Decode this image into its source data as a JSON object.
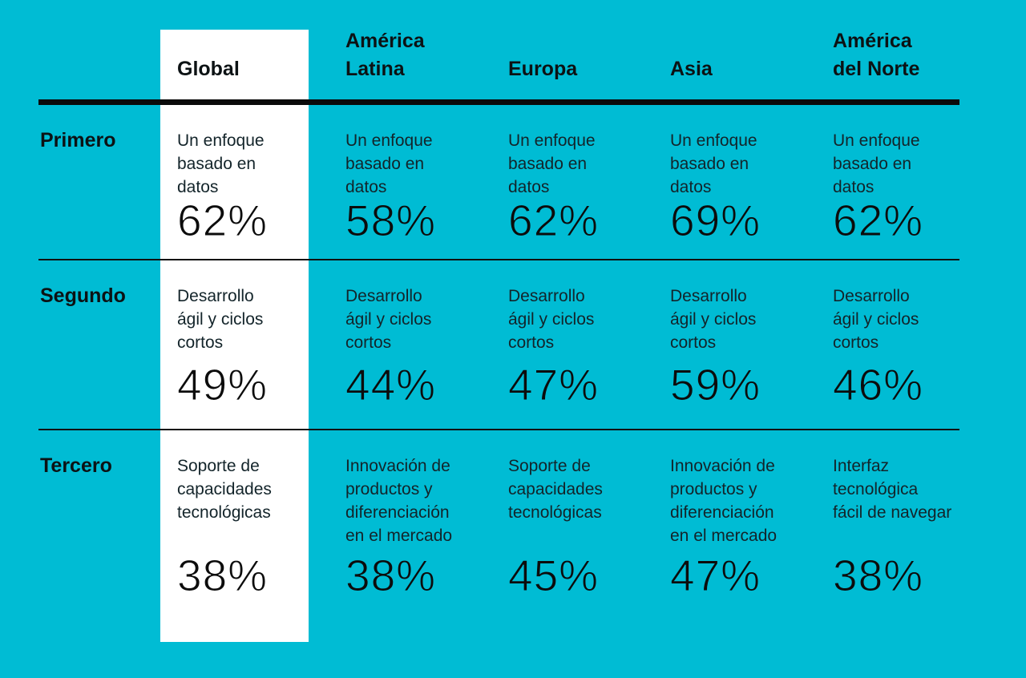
{
  "colors": {
    "background": "#00bcd4",
    "highlight_column": "#ffffff",
    "text": "#10181b",
    "rule": "#0b0b0b"
  },
  "table": {
    "columns": [
      {
        "label": "Global",
        "highlight": true
      },
      {
        "label": "América\nLatina",
        "highlight": false
      },
      {
        "label": "Europa",
        "highlight": false
      },
      {
        "label": "Asia",
        "highlight": false
      },
      {
        "label": "América\ndel Norte",
        "highlight": false
      }
    ],
    "rows": [
      {
        "label": "Primero",
        "cells": [
          {
            "desc": "Un enfoque\nbasado en\ndatos",
            "pct": "62%"
          },
          {
            "desc": "Un enfoque\nbasado en\ndatos",
            "pct": "58%"
          },
          {
            "desc": "Un enfoque\nbasado en\ndatos",
            "pct": "62%"
          },
          {
            "desc": "Un enfoque\nbasado en\ndatos",
            "pct": "69%"
          },
          {
            "desc": "Un enfoque\nbasado en\ndatos",
            "pct": "62%"
          }
        ]
      },
      {
        "label": "Segundo",
        "cells": [
          {
            "desc": "Desarrollo\nágil y ciclos\ncortos",
            "pct": "49%"
          },
          {
            "desc": "Desarrollo\nágil y ciclos\ncortos",
            "pct": "44%"
          },
          {
            "desc": "Desarrollo\nágil y ciclos\ncortos",
            "pct": "47%"
          },
          {
            "desc": "Desarrollo\nágil y ciclos\ncortos",
            "pct": "59%"
          },
          {
            "desc": "Desarrollo\nágil y ciclos\ncortos",
            "pct": "46%"
          }
        ]
      },
      {
        "label": "Tercero",
        "cells": [
          {
            "desc": "Soporte de\ncapacidades\ntecnológicas",
            "pct": "38%"
          },
          {
            "desc": "Innovación de\nproductos y\ndiferenciación\nen el mercado",
            "pct": "38%"
          },
          {
            "desc": "Soporte de\ncapacidades\ntecnológicas",
            "pct": "45%"
          },
          {
            "desc": "Innovación de\nproductos y\ndiferenciación\nen el mercado",
            "pct": "47%"
          },
          {
            "desc": "Interfaz\ntecnológica\nfácil de navegar",
            "pct": "38%"
          }
        ]
      }
    ]
  },
  "chart_data": {
    "type": "table",
    "title": "",
    "columns": [
      "Global",
      "América Latina",
      "Europa",
      "Asia",
      "América del Norte"
    ],
    "row_ranks": [
      "Primero",
      "Segundo",
      "Tercero"
    ],
    "cells": [
      [
        {
          "factor": "Un enfoque basado en datos",
          "value_pct": 62
        },
        {
          "factor": "Un enfoque basado en datos",
          "value_pct": 58
        },
        {
          "factor": "Un enfoque basado en datos",
          "value_pct": 62
        },
        {
          "factor": "Un enfoque basado en datos",
          "value_pct": 69
        },
        {
          "factor": "Un enfoque basado en datos",
          "value_pct": 62
        }
      ],
      [
        {
          "factor": "Desarrollo ágil y ciclos cortos",
          "value_pct": 49
        },
        {
          "factor": "Desarrollo ágil y ciclos cortos",
          "value_pct": 44
        },
        {
          "factor": "Desarrollo ágil y ciclos cortos",
          "value_pct": 47
        },
        {
          "factor": "Desarrollo ágil y ciclos cortos",
          "value_pct": 59
        },
        {
          "factor": "Desarrollo ágil y ciclos cortos",
          "value_pct": 46
        }
      ],
      [
        {
          "factor": "Soporte de capacidades tecnológicas",
          "value_pct": 38
        },
        {
          "factor": "Innovación de productos y diferenciación en el mercado",
          "value_pct": 38
        },
        {
          "factor": "Soporte de capacidades tecnológicas",
          "value_pct": 45
        },
        {
          "factor": "Innovación de productos y diferenciación en el mercado",
          "value_pct": 47
        },
        {
          "factor": "Interfaz tecnológica fácil de navegar",
          "value_pct": 38
        }
      ]
    ],
    "layout_hints": {
      "highlighted_column": "Global",
      "grid": "horizontal rules only",
      "background": "#00bcd4"
    }
  }
}
